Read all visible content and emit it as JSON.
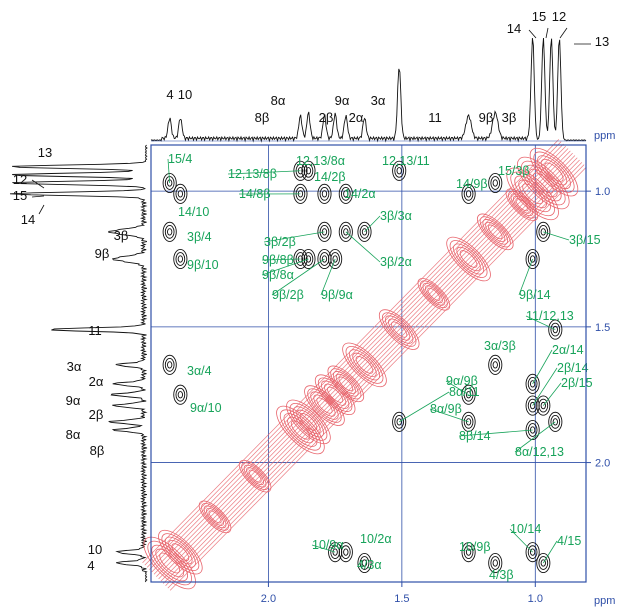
{
  "chart_data": {
    "type": "2D NMR COSY contour plot with projected 1D spectra",
    "x_axis": {
      "unit": "ppm",
      "range": [
        2.44,
        0.81
      ],
      "reversed": true,
      "ticks": [
        {
          "value": 2.0,
          "label": "2.0"
        },
        {
          "value": 1.5,
          "label": "1.5"
        },
        {
          "value": 1.0,
          "label": "1.0"
        }
      ]
    },
    "y_axis": {
      "unit": "ppm",
      "range": [
        0.83,
        2.44
      ],
      "side": "right",
      "ticks": [
        {
          "value": 1.0,
          "label": "1.0"
        },
        {
          "value": 1.5,
          "label": "1.5"
        },
        {
          "value": 2.0,
          "label": "2.0"
        }
      ]
    },
    "grid": true,
    "colors": {
      "frame": "#2f4fa8",
      "diagonal": "#e8646c",
      "cross_peak": "#111111",
      "label": "#17a35a",
      "spectrum": "#111111"
    },
    "top_spectrum_labels": [
      {
        "text": "4",
        "ppm": 2.37
      },
      {
        "text": "10",
        "ppm": 2.33
      },
      {
        "text": "8β",
        "ppm": 1.88
      },
      {
        "text": "8α",
        "ppm": 1.85
      },
      {
        "text": "2β",
        "ppm": 1.79
      },
      {
        "text": "9α",
        "ppm": 1.75
      },
      {
        "text": "2α",
        "ppm": 1.71
      },
      {
        "text": "3α",
        "ppm": 1.64
      },
      {
        "text": "11",
        "ppm": 1.51
      },
      {
        "text": "9β",
        "ppm": 1.25
      },
      {
        "text": "3β",
        "ppm": 1.15
      },
      {
        "text": "14",
        "ppm": 1.01
      },
      {
        "text": "15",
        "ppm": 0.97
      },
      {
        "text": "12",
        "ppm": 0.94
      },
      {
        "text": "13",
        "ppm": 0.91
      }
    ],
    "left_spectrum_labels": [
      {
        "text": "13",
        "ppm": 0.91
      },
      {
        "text": "12",
        "ppm": 0.94
      },
      {
        "text": "15",
        "ppm": 0.97
      },
      {
        "text": "14",
        "ppm": 1.01
      },
      {
        "text": "3β",
        "ppm": 1.15
      },
      {
        "text": "9β",
        "ppm": 1.25
      },
      {
        "text": "11",
        "ppm": 1.51
      },
      {
        "text": "3α",
        "ppm": 1.64
      },
      {
        "text": "2α",
        "ppm": 1.71
      },
      {
        "text": "9α",
        "ppm": 1.75
      },
      {
        "text": "2β",
        "ppm": 1.79
      },
      {
        "text": "8α",
        "ppm": 1.85
      },
      {
        "text": "8β",
        "ppm": 1.88
      },
      {
        "text": "10",
        "ppm": 2.33
      },
      {
        "text": "4",
        "ppm": 2.37
      }
    ],
    "cross_peaks": [
      {
        "label": "15/4",
        "x": 2.37,
        "y": 0.97
      },
      {
        "label": "14/10",
        "x": 2.33,
        "y": 1.01
      },
      {
        "label": "3β/4",
        "x": 2.37,
        "y": 1.15
      },
      {
        "label": "9β/10",
        "x": 2.33,
        "y": 1.25
      },
      {
        "label": "3α/4",
        "x": 2.37,
        "y": 1.64
      },
      {
        "label": "9α/10",
        "x": 2.33,
        "y": 1.75
      },
      {
        "label": "12,13/8β",
        "x": 1.88,
        "y": 0.925
      },
      {
        "label": "12,13/8α",
        "x": 1.85,
        "y": 0.925
      },
      {
        "label": "14/8β",
        "x": 1.88,
        "y": 1.01
      },
      {
        "label": "14/2β",
        "x": 1.79,
        "y": 1.01
      },
      {
        "label": "14/2α",
        "x": 1.71,
        "y": 1.01
      },
      {
        "label": "12,13/11",
        "x": 1.51,
        "y": 0.925
      },
      {
        "label": "3β/2β",
        "x": 1.79,
        "y": 1.15
      },
      {
        "label": "9β/8β",
        "x": 1.88,
        "y": 1.25
      },
      {
        "label": "9β/8α",
        "x": 1.85,
        "y": 1.25
      },
      {
        "label": "9β/2β",
        "x": 1.79,
        "y": 1.25
      },
      {
        "label": "9β/9α",
        "x": 1.75,
        "y": 1.25
      },
      {
        "label": "3β/3α",
        "x": 1.64,
        "y": 1.15
      },
      {
        "label": "3β/2α",
        "x": 1.71,
        "y": 1.15
      },
      {
        "label": "14/9β",
        "x": 1.25,
        "y": 1.01
      },
      {
        "label": "15/3β",
        "x": 1.15,
        "y": 0.97
      },
      {
        "label": "3β/15",
        "x": 0.97,
        "y": 1.15
      },
      {
        "label": "9β/14",
        "x": 1.01,
        "y": 1.25
      },
      {
        "label": "11/12,13",
        "x": 0.925,
        "y": 1.51
      },
      {
        "label": "3α/3β",
        "x": 1.15,
        "y": 1.64
      },
      {
        "label": "9α/9β",
        "x": 1.25,
        "y": 1.75
      },
      {
        "label": "2α/14",
        "x": 1.01,
        "y": 1.71
      },
      {
        "label": "2β/14",
        "x": 1.01,
        "y": 1.79
      },
      {
        "label": "2β/15",
        "x": 0.97,
        "y": 1.79
      },
      {
        "label": "8α/11",
        "x": 1.51,
        "y": 1.85
      },
      {
        "label": "8α/9β",
        "x": 1.25,
        "y": 1.85
      },
      {
        "label": "8β/14",
        "x": 1.01,
        "y": 1.88
      },
      {
        "label": "8α/12,13",
        "x": 0.925,
        "y": 1.85
      },
      {
        "label": "10/9α",
        "x": 1.75,
        "y": 2.33
      },
      {
        "label": "10/2α",
        "x": 1.71,
        "y": 2.33
      },
      {
        "label": "4/3α",
        "x": 1.64,
        "y": 2.37
      },
      {
        "label": "10/9β",
        "x": 1.25,
        "y": 2.33
      },
      {
        "label": "4/3β",
        "x": 1.15,
        "y": 2.37
      },
      {
        "label": "10/14",
        "x": 1.01,
        "y": 2.33
      },
      {
        "label": "4/15",
        "x": 0.97,
        "y": 2.37
      }
    ]
  }
}
